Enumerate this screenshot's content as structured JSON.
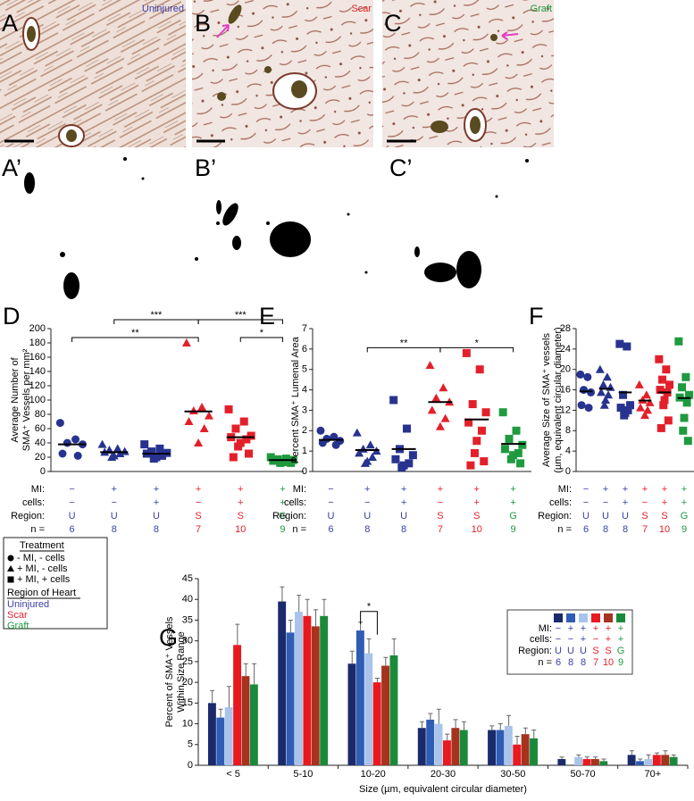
{
  "photos": [
    {
      "label": "A",
      "region": "Uninjured",
      "color": "#3a40a8"
    },
    {
      "label": "B",
      "region": "Scar",
      "color": "#e3202a"
    },
    {
      "label": "C",
      "region": "Graft",
      "color": "#1f9a3f"
    }
  ],
  "binary_labels": [
    "A’",
    "B’",
    "C’"
  ],
  "legend": {
    "treatment_title": "Treatment",
    "treatment": [
      "- MI, - cells",
      "+ MI, - cells",
      "+ MI, + cells"
    ],
    "region_title": "Region of Heart",
    "regions": [
      {
        "text": "Uninjured",
        "color": "#3a40a8"
      },
      {
        "text": "Scar",
        "color": "#e3202a"
      },
      {
        "text": "Graft",
        "color": "#1f9a3f"
      }
    ]
  },
  "chart_data": [
    {
      "type": "strip",
      "label": "D",
      "y_label": [
        "Average Number of",
        "SMA⁺ Vessels per mm²"
      ],
      "ylim": [
        0,
        200
      ],
      "yticks": [
        0,
        20,
        40,
        60,
        80,
        100,
        120,
        140,
        160,
        180,
        200
      ],
      "groups": [
        {
          "marker": "circle",
          "color": "#27338f",
          "values": [
            68,
            45,
            40,
            38,
            25,
            22
          ],
          "mean": 38
        },
        {
          "marker": "triangle",
          "color": "#27338f",
          "values": [
            38,
            32,
            30,
            28,
            27,
            25,
            22,
            20
          ],
          "mean": 27
        },
        {
          "marker": "square",
          "color": "#27338f",
          "values": [
            38,
            32,
            28,
            26,
            25,
            22,
            20,
            18
          ],
          "mean": 25
        },
        {
          "marker": "triangle",
          "color": "#e3202a",
          "values": [
            180,
            90,
            85,
            78,
            70,
            60,
            40
          ],
          "mean": 84
        },
        {
          "marker": "square",
          "color": "#e3202a",
          "values": [
            87,
            70,
            60,
            50,
            48,
            45,
            40,
            35,
            25,
            20
          ],
          "mean": 48
        },
        {
          "marker": "square",
          "color": "#1f9a3f",
          "values": [
            20,
            18,
            17,
            16,
            15,
            14,
            13,
            12,
            12
          ],
          "mean": 16
        }
      ],
      "brackets": [
        {
          "from": 0,
          "to": 3,
          "label": "**"
        },
        {
          "from": 4,
          "to": 5,
          "label": "*"
        },
        {
          "from": 1,
          "to": 3,
          "label": "***"
        },
        {
          "from": 3,
          "to": 5,
          "label": "***"
        }
      ],
      "table": {
        "row_labels": [
          "MI:",
          "cells:",
          "Region:",
          "n ="
        ],
        "rows": [
          [
            "−",
            "+",
            "+",
            "+",
            "+",
            "+"
          ],
          [
            "−",
            "−",
            "+",
            "−",
            "+",
            "+"
          ],
          [
            "U",
            "U",
            "U",
            "S",
            "S",
            "G"
          ],
          [
            6,
            8,
            8,
            7,
            10,
            9
          ]
        ],
        "colors": [
          "#3a40a8",
          "#3a40a8",
          "#3a40a8",
          "#e3202a",
          "#e3202a",
          "#1f9a3f"
        ]
      }
    },
    {
      "type": "strip",
      "label": "E",
      "y_label": [
        "Percent SMA⁺ Lumenal Area"
      ],
      "ylim": [
        0,
        7
      ],
      "yticks": [
        0,
        1,
        2,
        3,
        4,
        5,
        6,
        7
      ],
      "groups": [
        {
          "marker": "circle",
          "color": "#27338f",
          "values": [
            2.0,
            1.7,
            1.6,
            1.5,
            1.4,
            1.3
          ],
          "mean": 1.55
        },
        {
          "marker": "triangle",
          "color": "#27338f",
          "values": [
            1.9,
            1.3,
            1.1,
            1.0,
            0.9,
            0.7,
            0.5,
            0.4
          ],
          "mean": 1.05
        },
        {
          "marker": "square",
          "color": "#27338f",
          "values": [
            3.5,
            2.1,
            1.1,
            0.8,
            0.6,
            0.4,
            0.3,
            0.2
          ],
          "mean": 1.1
        },
        {
          "marker": "triangle",
          "color": "#e3202a",
          "values": [
            5.2,
            4.1,
            3.6,
            3.4,
            3.0,
            2.6,
            2.2
          ],
          "mean": 3.4
        },
        {
          "marker": "square",
          "color": "#e3202a",
          "values": [
            5.8,
            5.0,
            3.3,
            2.9,
            2.4,
            2.0,
            1.5,
            0.9,
            0.5,
            0.3
          ],
          "mean": 2.55
        },
        {
          "marker": "square",
          "color": "#1f9a3f",
          "values": [
            2.9,
            2.0,
            1.6,
            1.3,
            1.1,
            0.9,
            0.8,
            0.6,
            0.4
          ],
          "mean": 1.35
        }
      ],
      "brackets": [
        {
          "from": 1,
          "to": 3,
          "label": "**"
        },
        {
          "from": 3,
          "to": 5,
          "label": "*"
        }
      ],
      "table": {
        "row_labels": [
          "MI:",
          "cells:",
          "Region:",
          "n ="
        ],
        "rows": [
          [
            "−",
            "+",
            "+",
            "+",
            "+",
            "+"
          ],
          [
            "−",
            "−",
            "+",
            "−",
            "+",
            "+"
          ],
          [
            "U",
            "U",
            "U",
            "S",
            "S",
            "G"
          ],
          [
            6,
            8,
            8,
            7,
            10,
            9
          ]
        ],
        "colors": [
          "#3a40a8",
          "#3a40a8",
          "#3a40a8",
          "#e3202a",
          "#e3202a",
          "#1f9a3f"
        ]
      }
    },
    {
      "type": "strip",
      "label": "F",
      "y_label": [
        "Average Size of SMA⁺ vessels",
        "(µm, equivalent circular diameter)"
      ],
      "ylim": [
        0,
        28
      ],
      "yticks": [
        0,
        4,
        8,
        12,
        16,
        20,
        24,
        28
      ],
      "groups": [
        {
          "marker": "circle",
          "color": "#27338f",
          "values": [
            19,
            18.5,
            16,
            15.5,
            13,
            12.5
          ],
          "mean": 15.7
        },
        {
          "marker": "triangle",
          "color": "#27338f",
          "values": [
            20,
            18.5,
            17,
            16.5,
            15.5,
            15,
            14,
            13
          ],
          "mean": 16.2
        },
        {
          "marker": "square",
          "color": "#27338f",
          "values": [
            25,
            24.5,
            15,
            13,
            12.5,
            12,
            11.5,
            11
          ],
          "mean": 15.5
        },
        {
          "marker": "triangle",
          "color": "#e3202a",
          "values": [
            17,
            15,
            14,
            13.5,
            12.5,
            12,
            11
          ],
          "mean": 13.9
        },
        {
          "marker": "square",
          "color": "#e3202a",
          "values": [
            22,
            20,
            18,
            17,
            16,
            15.5,
            14,
            13,
            10,
            8.5
          ],
          "mean": 15.5
        },
        {
          "marker": "square",
          "color": "#1f9a3f",
          "values": [
            25.5,
            18.5,
            16.5,
            15,
            14.5,
            13.5,
            10.5,
            8,
            6
          ],
          "mean": 14.4
        }
      ],
      "brackets": [],
      "table": {
        "row_labels": [
          "MI:",
          "cells:",
          "Region:",
          "n ="
        ],
        "rows": [
          [
            "−",
            "+",
            "+",
            "+",
            "+",
            "+"
          ],
          [
            "−",
            "−",
            "+",
            "−",
            "+",
            "+"
          ],
          [
            "U",
            "U",
            "U",
            "S",
            "S",
            "G"
          ],
          [
            6,
            8,
            8,
            7,
            10,
            9
          ]
        ],
        "colors": [
          "#3a40a8",
          "#3a40a8",
          "#3a40a8",
          "#e3202a",
          "#e3202a",
          "#1f9a3f"
        ]
      }
    },
    {
      "type": "bar",
      "label": "G",
      "y_label": [
        "Percent of SMA⁺ Vessels",
        "Within Size Range"
      ],
      "x_label": "Size (µm, equivalent circular diameter)",
      "ylim": [
        0,
        45
      ],
      "yticks": [
        0,
        5,
        10,
        15,
        20,
        25,
        30,
        35,
        40,
        45
      ],
      "categories": [
        "< 5",
        "5-10",
        "10-20",
        "20-30",
        "30-50",
        "50-70",
        "70+"
      ],
      "series": [
        {
          "color": "#1b2a6b",
          "values": [
            15,
            39.5,
            24.5,
            9,
            8.5,
            1.5,
            2.5
          ],
          "errors": [
            3,
            3.5,
            3,
            1.5,
            1,
            0.5,
            1
          ]
        },
        {
          "color": "#2f5db5",
          "values": [
            11.5,
            32,
            32.5,
            11,
            8.5,
            null,
            1
          ],
          "errors": [
            2,
            3,
            2,
            1.5,
            1.5,
            null,
            0.5
          ]
        },
        {
          "color": "#a9c4ea",
          "values": [
            14,
            37,
            27,
            10,
            9.5,
            2,
            1.5
          ],
          "errors": [
            5,
            4,
            3.5,
            3.5,
            2.5,
            0.5,
            1
          ]
        },
        {
          "color": "#e8191f",
          "values": [
            29,
            36,
            20,
            6,
            5,
            1.5,
            2.5
          ],
          "errors": [
            5,
            4,
            1,
            1.5,
            2,
            0.5,
            0.5
          ]
        },
        {
          "color": "#a5331e",
          "values": [
            21.5,
            33.5,
            24,
            9,
            7.5,
            1.5,
            2.5
          ],
          "errors": [
            3,
            4,
            2,
            2,
            1.5,
            0.5,
            1
          ]
        },
        {
          "color": "#1a8a3a",
          "values": [
            19.5,
            36,
            26.5,
            8.5,
            6.5,
            1,
            2
          ],
          "errors": [
            5,
            4,
            4,
            2,
            2,
            0.5,
            0.5
          ]
        }
      ],
      "brackets": [
        {
          "category": 2,
          "from": 1,
          "to": 3,
          "label": "*"
        }
      ],
      "table": {
        "row_labels": [
          "MI:",
          "cells:",
          "Region:",
          "n ="
        ],
        "rows": [
          [
            "−",
            "+",
            "+",
            "+",
            "+",
            "+"
          ],
          [
            "−",
            "−",
            "+",
            "−",
            "+",
            "+"
          ],
          [
            "U",
            "U",
            "U",
            "S",
            "S",
            "G"
          ],
          [
            6,
            8,
            8,
            7,
            10,
            9
          ]
        ],
        "colors": [
          "#3a40a8",
          "#3a40a8",
          "#3a40a8",
          "#e3202a",
          "#e3202a",
          "#1f9a3f"
        ]
      }
    }
  ]
}
